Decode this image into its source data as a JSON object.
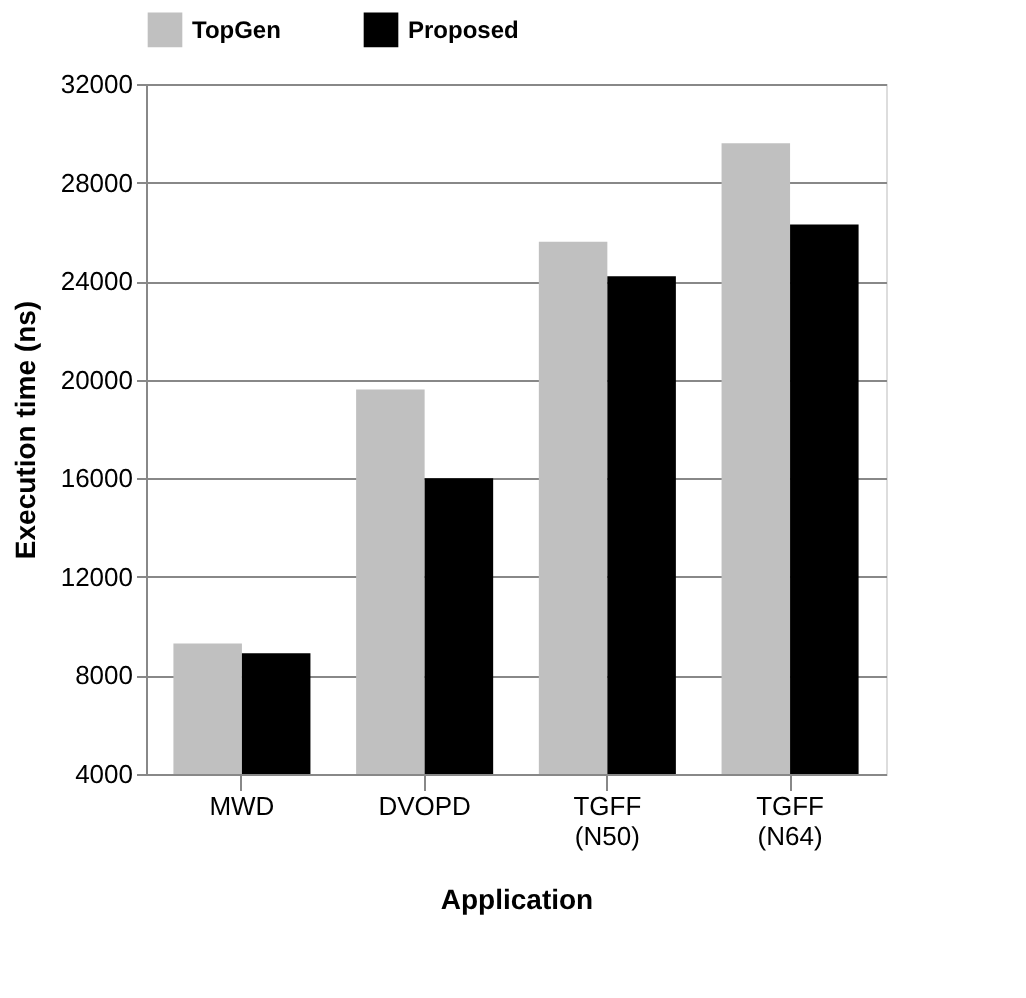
{
  "chart_data": {
    "type": "bar",
    "xlabel": "Application",
    "ylabel": "Execution time (ns)",
    "categories": [
      "MWD",
      "DVOPD",
      "TGFF (N50)",
      "TGFF (N64)"
    ],
    "series": [
      {
        "name": "TopGen",
        "color": "#c0c0c0",
        "values": [
          9300,
          19600,
          25600,
          29600
        ]
      },
      {
        "name": "Proposed",
        "color": "#000000",
        "values": [
          8900,
          16000,
          24200,
          26300
        ]
      }
    ],
    "ylim": [
      4000,
      32000
    ],
    "yticks": [
      4000,
      8000,
      12000,
      16000,
      20000,
      24000,
      28000,
      32000
    ],
    "grid": "y",
    "legend": "top"
  }
}
